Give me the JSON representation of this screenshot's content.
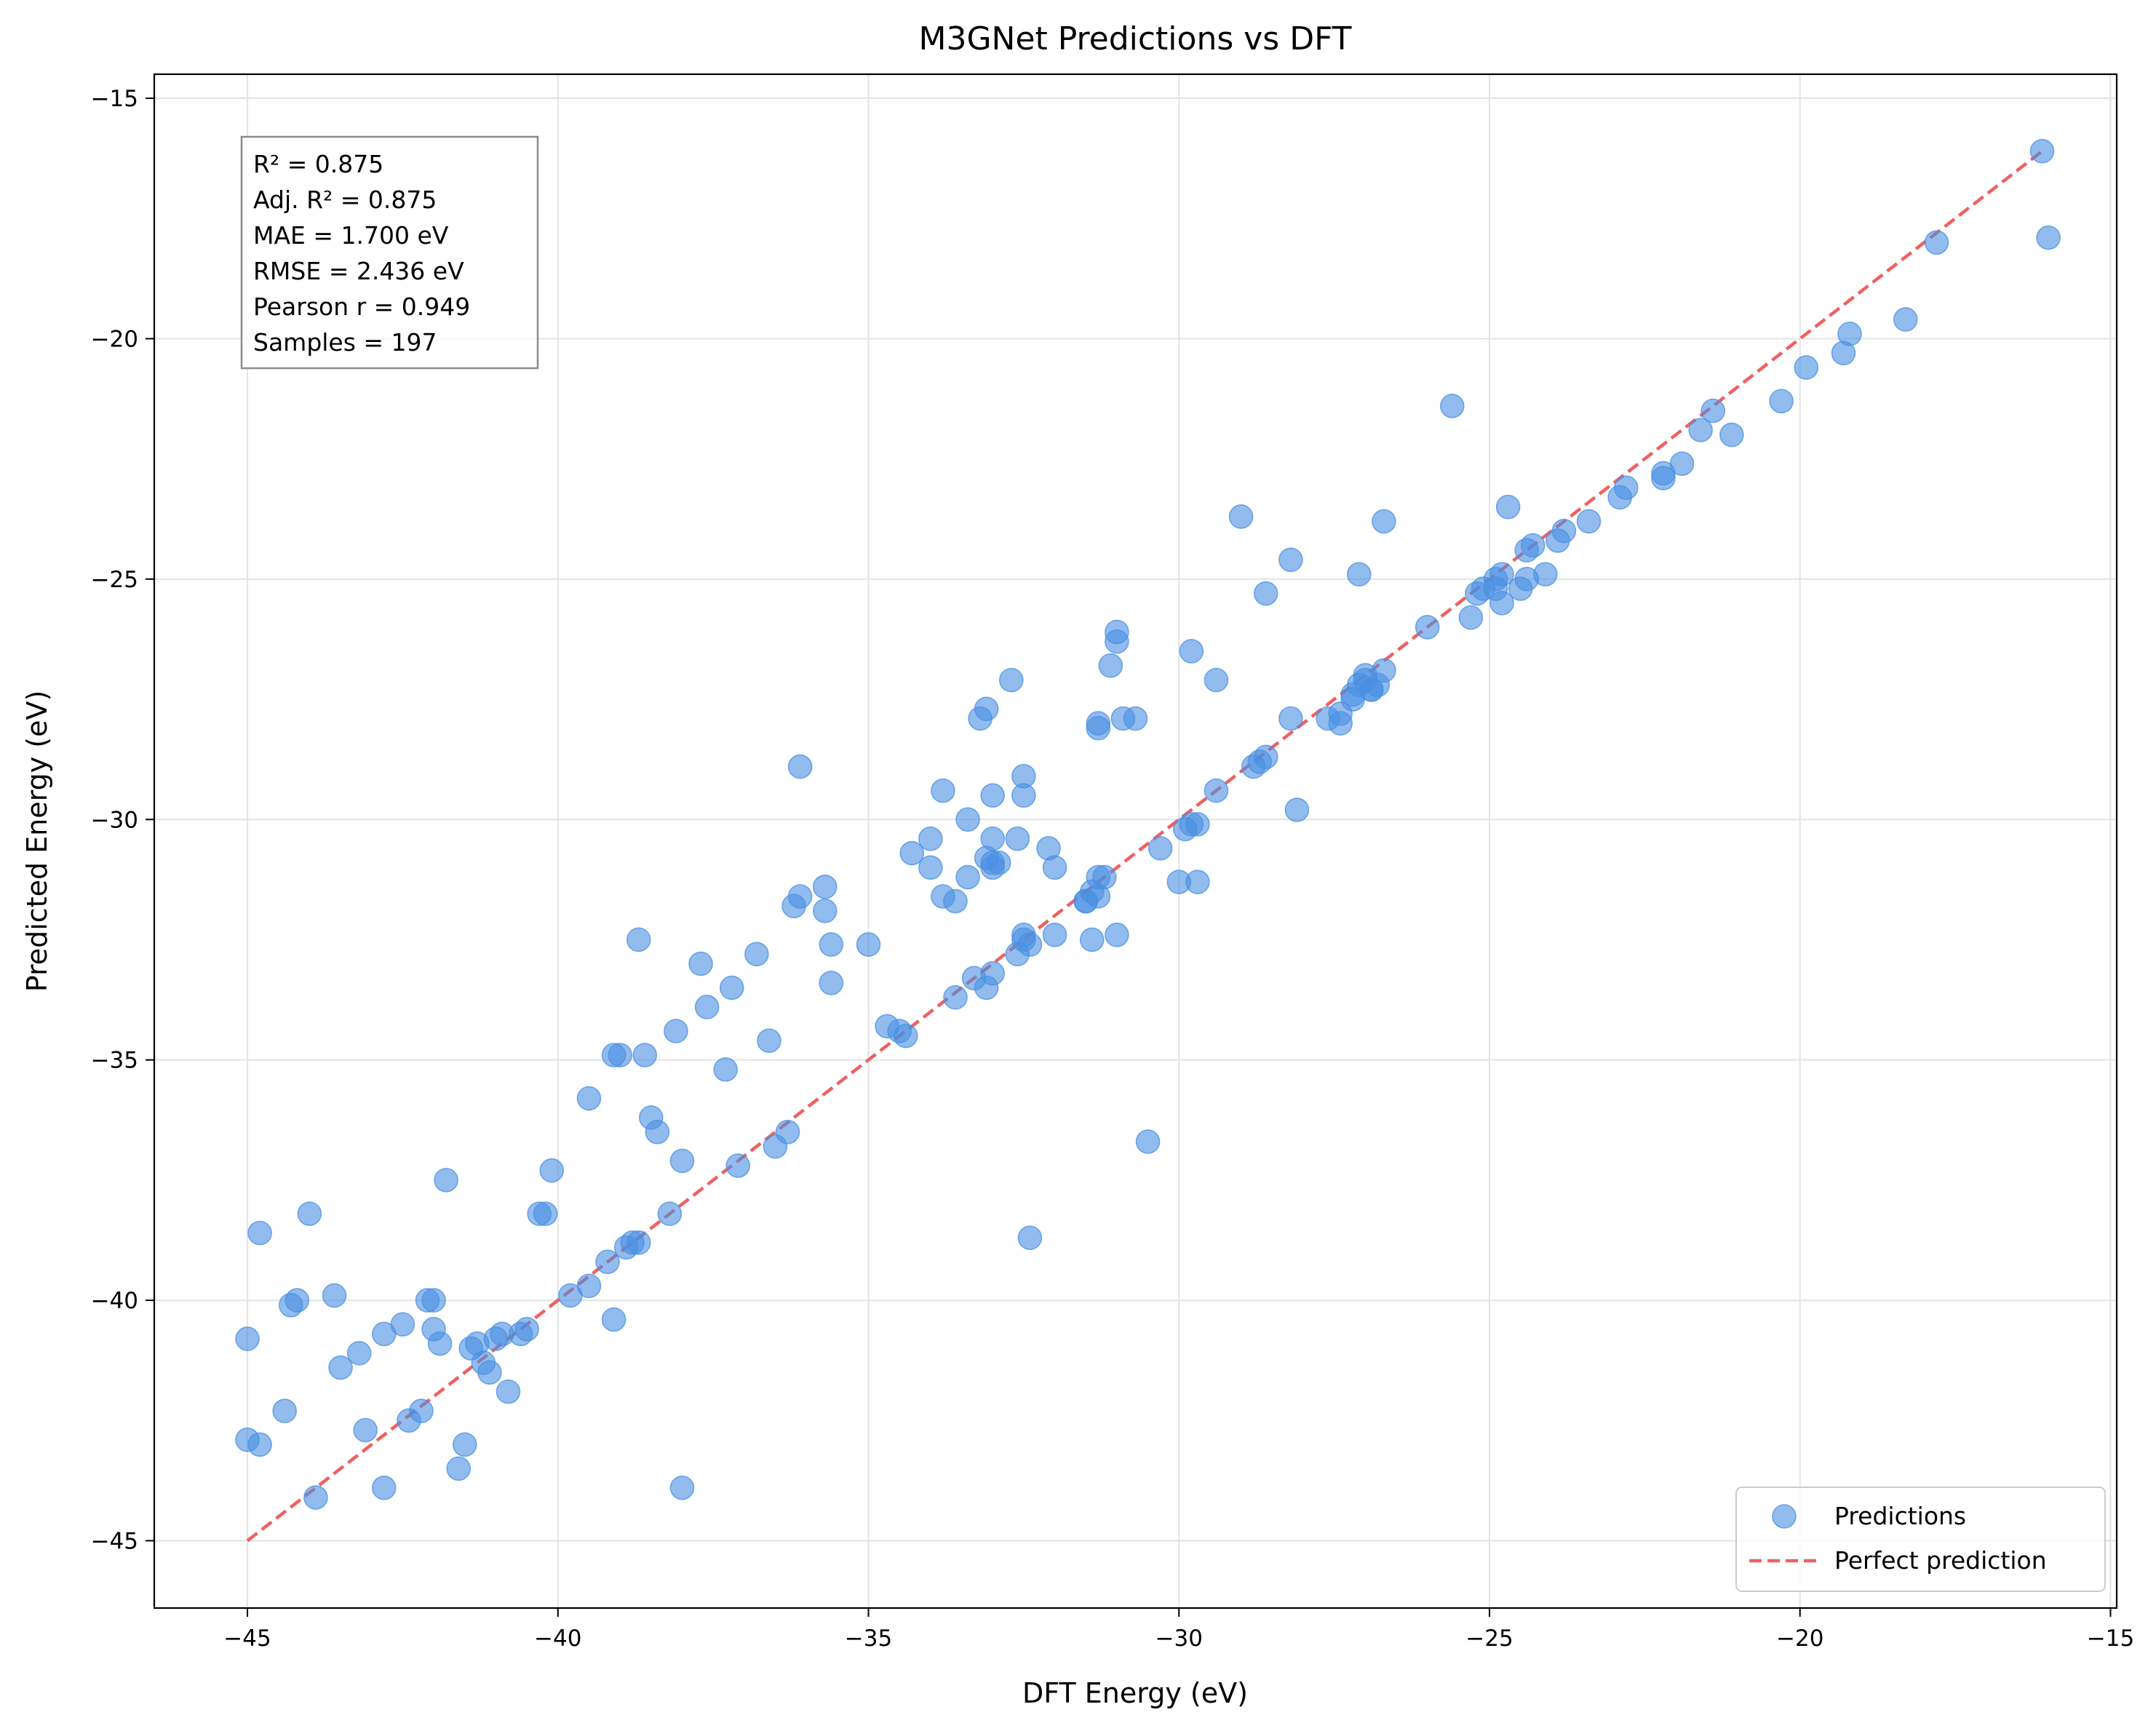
{
  "chart_data": {
    "type": "scatter",
    "title": "M3GNet Predictions vs DFT",
    "xlabel": "DFT Energy (eV)",
    "ylabel": "Predicted Energy (eV)",
    "xlim": [
      -46.5,
      -14.9
    ],
    "ylim": [
      -46.4,
      -14.5
    ],
    "xticks": [
      -45,
      -40,
      -35,
      -30,
      -25,
      -20,
      -15
    ],
    "yticks": [
      -45,
      -40,
      -35,
      -30,
      -25,
      -20,
      -15
    ],
    "xtick_labels": [
      "−45",
      "−40",
      "−35",
      "−30",
      "−25",
      "−20",
      "−15"
    ],
    "ytick_labels": [
      "−45",
      "−40",
      "−35",
      "−30",
      "−25",
      "−20",
      "−15"
    ],
    "grid": true,
    "legend_position": "bottom-right",
    "colors": {
      "points": "#4a90e2",
      "perfect_line": "#f06060"
    },
    "stats_lines": [
      "R² = 0.875",
      "Adj. R² = 0.875",
      "MAE = 1.700 eV",
      "RMSE = 2.436 eV",
      "Pearson r = 0.949",
      "Samples = 197"
    ],
    "series": [
      {
        "name": "Predictions",
        "points": [
          [
            -45.0,
            -40.8
          ],
          [
            -45.0,
            -42.9
          ],
          [
            -44.8,
            -43.0
          ],
          [
            -44.8,
            -38.6
          ],
          [
            -44.4,
            -42.3
          ],
          [
            -44.3,
            -40.1
          ],
          [
            -44.2,
            -40.0
          ],
          [
            -44.0,
            -38.2
          ],
          [
            -43.9,
            -44.1
          ],
          [
            -43.6,
            -39.9
          ],
          [
            -43.5,
            -41.4
          ],
          [
            -43.2,
            -41.1
          ],
          [
            -43.1,
            -42.7
          ],
          [
            -42.8,
            -40.7
          ],
          [
            -42.8,
            -43.9
          ],
          [
            -42.5,
            -40.5
          ],
          [
            -42.4,
            -42.5
          ],
          [
            -42.2,
            -42.3
          ],
          [
            -42.1,
            -40.0
          ],
          [
            -42.0,
            -40.0
          ],
          [
            -42.0,
            -40.6
          ],
          [
            -41.9,
            -40.9
          ],
          [
            -41.8,
            -37.5
          ],
          [
            -41.6,
            -43.5
          ],
          [
            -41.5,
            -43.0
          ],
          [
            -41.4,
            -41.0
          ],
          [
            -41.3,
            -40.9
          ],
          [
            -41.2,
            -41.3
          ],
          [
            -41.1,
            -41.5
          ],
          [
            -41.0,
            -40.8
          ],
          [
            -40.9,
            -40.7
          ],
          [
            -40.8,
            -41.9
          ],
          [
            -40.6,
            -40.7
          ],
          [
            -40.5,
            -40.6
          ],
          [
            -40.3,
            -38.2
          ],
          [
            -40.2,
            -38.2
          ],
          [
            -40.1,
            -37.3
          ],
          [
            -39.8,
            -39.9
          ],
          [
            -39.5,
            -39.7
          ],
          [
            -39.5,
            -35.8
          ],
          [
            -39.2,
            -39.2
          ],
          [
            -39.1,
            -40.4
          ],
          [
            -39.1,
            -34.9
          ],
          [
            -39.0,
            -34.9
          ],
          [
            -38.9,
            -38.9
          ],
          [
            -38.8,
            -38.8
          ],
          [
            -38.7,
            -38.8
          ],
          [
            -38.7,
            -32.5
          ],
          [
            -38.6,
            -34.9
          ],
          [
            -38.5,
            -36.2
          ],
          [
            -38.4,
            -36.5
          ],
          [
            -38.2,
            -38.2
          ],
          [
            -38.1,
            -34.4
          ],
          [
            -38.0,
            -37.1
          ],
          [
            -38.0,
            -43.9
          ],
          [
            -37.7,
            -33.0
          ],
          [
            -37.6,
            -33.9
          ],
          [
            -37.3,
            -35.2
          ],
          [
            -37.2,
            -33.5
          ],
          [
            -37.1,
            -37.2
          ],
          [
            -36.8,
            -32.8
          ],
          [
            -36.6,
            -34.6
          ],
          [
            -36.5,
            -36.8
          ],
          [
            -36.3,
            -36.5
          ],
          [
            -36.2,
            -31.8
          ],
          [
            -36.1,
            -31.6
          ],
          [
            -36.1,
            -28.9
          ],
          [
            -35.7,
            -31.4
          ],
          [
            -35.7,
            -31.9
          ],
          [
            -35.6,
            -33.4
          ],
          [
            -35.6,
            -32.6
          ],
          [
            -35.0,
            -32.6
          ],
          [
            -34.7,
            -34.3
          ],
          [
            -34.5,
            -34.4
          ],
          [
            -34.4,
            -34.5
          ],
          [
            -34.3,
            -30.7
          ],
          [
            -34.0,
            -30.4
          ],
          [
            -34.0,
            -31.0
          ],
          [
            -33.8,
            -29.4
          ],
          [
            -33.8,
            -31.6
          ],
          [
            -33.6,
            -31.7
          ],
          [
            -33.6,
            -33.7
          ],
          [
            -33.4,
            -30.0
          ],
          [
            -33.4,
            -31.2
          ],
          [
            -33.3,
            -33.3
          ],
          [
            -33.2,
            -27.9
          ],
          [
            -33.1,
            -27.7
          ],
          [
            -33.1,
            -30.8
          ],
          [
            -33.1,
            -33.5
          ],
          [
            -33.0,
            -29.5
          ],
          [
            -33.0,
            -31.0
          ],
          [
            -33.0,
            -30.9
          ],
          [
            -33.0,
            -30.4
          ],
          [
            -33.0,
            -33.2
          ],
          [
            -32.9,
            -30.9
          ],
          [
            -32.7,
            -27.1
          ],
          [
            -32.6,
            -32.8
          ],
          [
            -32.6,
            -30.4
          ],
          [
            -32.5,
            -29.5
          ],
          [
            -32.5,
            -32.4
          ],
          [
            -32.5,
            -32.5
          ],
          [
            -32.5,
            -29.1
          ],
          [
            -32.4,
            -32.6
          ],
          [
            -32.4,
            -38.7
          ],
          [
            -32.1,
            -30.6
          ],
          [
            -32.0,
            -31.0
          ],
          [
            -32.0,
            -32.4
          ],
          [
            -31.5,
            -31.7
          ],
          [
            -31.5,
            -31.7
          ],
          [
            -31.4,
            -32.5
          ],
          [
            -31.4,
            -31.5
          ],
          [
            -31.3,
            -31.2
          ],
          [
            -31.3,
            -31.6
          ],
          [
            -31.3,
            -28.0
          ],
          [
            -31.3,
            -28.1
          ],
          [
            -31.2,
            -31.2
          ],
          [
            -31.1,
            -26.8
          ],
          [
            -31.0,
            -32.4
          ],
          [
            -31.0,
            -26.1
          ],
          [
            -31.0,
            -26.3
          ],
          [
            -30.9,
            -27.9
          ],
          [
            -30.7,
            -27.9
          ],
          [
            -30.5,
            -36.7
          ],
          [
            -30.3,
            -30.6
          ],
          [
            -30.0,
            -31.3
          ],
          [
            -29.9,
            -30.2
          ],
          [
            -29.8,
            -30.1
          ],
          [
            -29.8,
            -26.5
          ],
          [
            -29.7,
            -31.3
          ],
          [
            -29.7,
            -30.1
          ],
          [
            -29.4,
            -27.1
          ],
          [
            -29.4,
            -29.4
          ],
          [
            -29.0,
            -23.7
          ],
          [
            -28.8,
            -28.9
          ],
          [
            -28.7,
            -28.8
          ],
          [
            -28.6,
            -28.7
          ],
          [
            -28.6,
            -25.3
          ],
          [
            -28.2,
            -27.9
          ],
          [
            -28.2,
            -24.6
          ],
          [
            -28.1,
            -29.8
          ],
          [
            -27.6,
            -27.9
          ],
          [
            -27.4,
            -27.8
          ],
          [
            -27.4,
            -28.0
          ],
          [
            -27.2,
            -27.4
          ],
          [
            -27.2,
            -27.5
          ],
          [
            -27.1,
            -24.9
          ],
          [
            -27.1,
            -27.2
          ],
          [
            -27.0,
            -27.0
          ],
          [
            -27.0,
            -27.1
          ],
          [
            -26.9,
            -27.3
          ],
          [
            -26.9,
            -27.3
          ],
          [
            -26.8,
            -27.2
          ],
          [
            -26.7,
            -26.9
          ],
          [
            -26.7,
            -23.8
          ],
          [
            -26.0,
            -26.0
          ],
          [
            -25.6,
            -21.4
          ],
          [
            -25.3,
            -25.8
          ],
          [
            -25.2,
            -25.3
          ],
          [
            -25.1,
            -25.2
          ],
          [
            -24.9,
            -25.2
          ],
          [
            -24.9,
            -25.0
          ],
          [
            -24.8,
            -24.9
          ],
          [
            -24.8,
            -25.5
          ],
          [
            -24.7,
            -23.5
          ],
          [
            -24.5,
            -25.2
          ],
          [
            -24.4,
            -25.0
          ],
          [
            -24.4,
            -24.4
          ],
          [
            -24.3,
            -24.3
          ],
          [
            -24.1,
            -24.9
          ],
          [
            -23.9,
            -24.2
          ],
          [
            -23.8,
            -24.0
          ],
          [
            -23.4,
            -23.8
          ],
          [
            -22.9,
            -23.3
          ],
          [
            -22.8,
            -23.1
          ],
          [
            -22.2,
            -22.9
          ],
          [
            -22.2,
            -22.8
          ],
          [
            -21.9,
            -22.6
          ],
          [
            -21.6,
            -21.9
          ],
          [
            -21.4,
            -21.5
          ],
          [
            -21.1,
            -22.0
          ],
          [
            -20.3,
            -21.3
          ],
          [
            -19.9,
            -20.6
          ],
          [
            -19.3,
            -20.3
          ],
          [
            -19.2,
            -19.9
          ],
          [
            -18.3,
            -19.6
          ],
          [
            -17.8,
            -18.0
          ],
          [
            -16.1,
            -16.1
          ],
          [
            -16.0,
            -17.9
          ]
        ]
      },
      {
        "name": "Perfect prediction",
        "line": [
          [
            -45.0,
            -45.0
          ],
          [
            -16.1,
            -16.1
          ]
        ]
      }
    ]
  }
}
